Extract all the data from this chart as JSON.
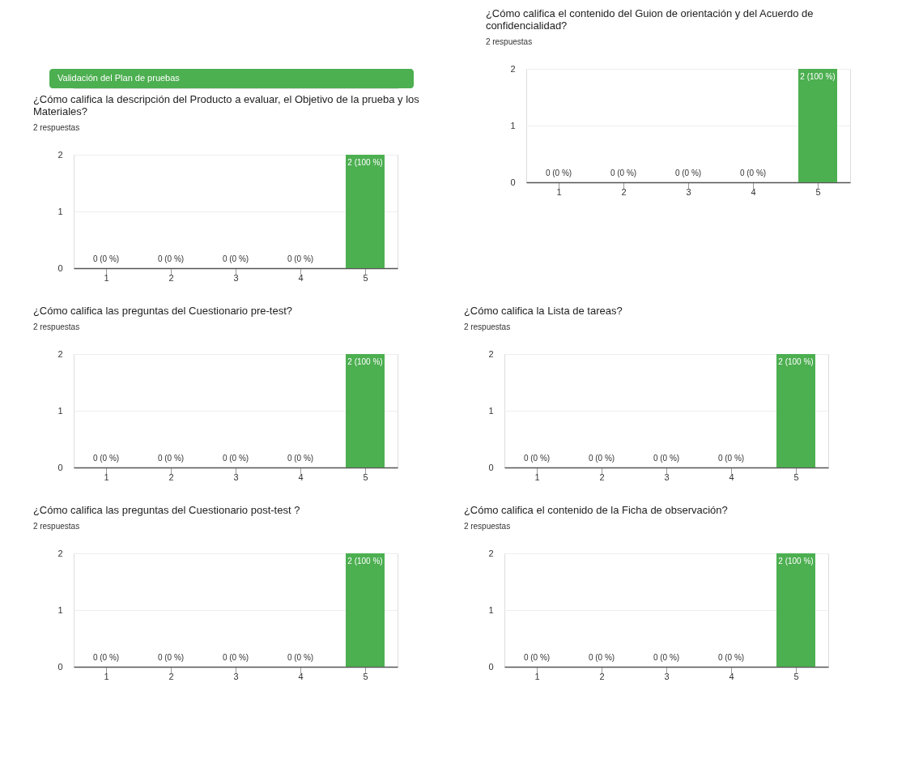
{
  "chart_data": [
    {
      "type": "bar",
      "annotations": [
        "Validación del Plan de pruebas"
      ],
      "title": "¿Cómo califica la descripción del Producto a evaluar, el Objetivo de la prueba y los Materiales?",
      "subtitle": "2 respuestas",
      "categories": [
        "1",
        "2",
        "3",
        "4",
        "5"
      ],
      "values": [
        0,
        0,
        0,
        0,
        2
      ],
      "value_labels": [
        "0 (0 %)",
        "0 (0 %)",
        "0 (0 %)",
        "0 (0 %)",
        "2 (100 %)"
      ],
      "color": "#4caf50",
      "ylim": [
        0,
        2
      ],
      "yticks": [
        0,
        1,
        2
      ],
      "grid": "y"
    },
    {
      "type": "bar",
      "title": "¿Cómo califica el contenido del Guion de orientación y del Acuerdo de confidencialidad?",
      "subtitle": "2 respuestas",
      "categories": [
        "1",
        "2",
        "3",
        "4",
        "5"
      ],
      "values": [
        0,
        0,
        0,
        0,
        2
      ],
      "value_labels": [
        "0 (0 %)",
        "0 (0 %)",
        "0 (0 %)",
        "0 (0 %)",
        "2 (100 %)"
      ],
      "color": "#4caf50",
      "ylim": [
        0,
        2
      ],
      "yticks": [
        0,
        1,
        2
      ],
      "grid": "y"
    },
    {
      "type": "bar",
      "title": "¿Cómo califica las preguntas del Cuestionario pre-test?",
      "subtitle": "2 respuestas",
      "categories": [
        "1",
        "2",
        "3",
        "4",
        "5"
      ],
      "values": [
        0,
        0,
        0,
        0,
        2
      ],
      "value_labels": [
        "0 (0 %)",
        "0 (0 %)",
        "0 (0 %)",
        "0 (0 %)",
        "2 (100 %)"
      ],
      "color": "#4caf50",
      "ylim": [
        0,
        2
      ],
      "yticks": [
        0,
        1,
        2
      ],
      "grid": "y"
    },
    {
      "type": "bar",
      "title": "¿Cómo califica la Lista de tareas?",
      "subtitle": "2 respuestas",
      "categories": [
        "1",
        "2",
        "3",
        "4",
        "5"
      ],
      "values": [
        0,
        0,
        0,
        0,
        2
      ],
      "value_labels": [
        "0 (0 %)",
        "0 (0 %)",
        "0 (0 %)",
        "0 (0 %)",
        "2 (100 %)"
      ],
      "color": "#4caf50",
      "ylim": [
        0,
        2
      ],
      "yticks": [
        0,
        1,
        2
      ],
      "grid": "y"
    },
    {
      "type": "bar",
      "title": "¿Cómo califica las preguntas del Cuestionario post-test ?",
      "subtitle": "2 respuestas",
      "categories": [
        "1",
        "2",
        "3",
        "4",
        "5"
      ],
      "values": [
        0,
        0,
        0,
        0,
        2
      ],
      "value_labels": [
        "0 (0 %)",
        "0 (0 %)",
        "0 (0 %)",
        "0 (0 %)",
        "2 (100 %)"
      ],
      "color": "#4caf50",
      "ylim": [
        0,
        2
      ],
      "yticks": [
        0,
        1,
        2
      ],
      "grid": "y"
    },
    {
      "type": "bar",
      "title": "¿Cómo califica el contenido de la Ficha de observación?",
      "subtitle": "2 respuestas",
      "categories": [
        "1",
        "2",
        "3",
        "4",
        "5"
      ],
      "values": [
        0,
        0,
        0,
        0,
        2
      ],
      "value_labels": [
        "0 (0 %)",
        "0 (0 %)",
        "0 (0 %)",
        "0 (0 %)",
        "2 (100 %)"
      ],
      "color": "#4caf50",
      "ylim": [
        0,
        2
      ],
      "yticks": [
        0,
        1,
        2
      ],
      "grid": "y"
    }
  ]
}
